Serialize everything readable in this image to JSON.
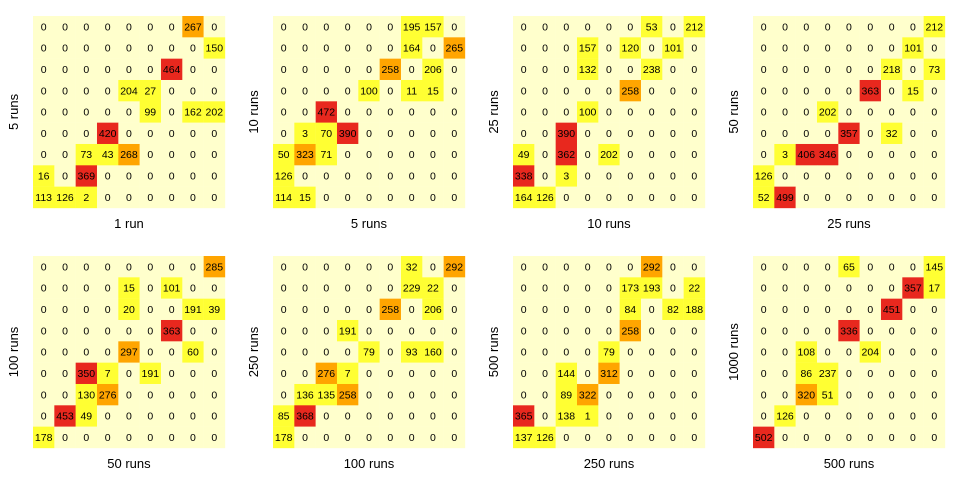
{
  "colors": {
    "empty": "#ffffcc",
    "low": "#ffff33",
    "mid": "#ffa500",
    "high": "#e8281e",
    "text": "#000000"
  },
  "chart_data": [
    {
      "type": "heatmap",
      "xlabel": "1 run",
      "ylabel": "5 runs",
      "rows": [
        [
          0,
          0,
          0,
          0,
          0,
          0,
          0,
          267,
          0
        ],
        [
          0,
          0,
          0,
          0,
          0,
          0,
          0,
          0,
          150
        ],
        [
          0,
          0,
          0,
          0,
          0,
          0,
          464,
          0,
          0
        ],
        [
          0,
          0,
          0,
          0,
          204,
          27,
          0,
          0,
          0
        ],
        [
          0,
          0,
          0,
          0,
          0,
          99,
          0,
          162,
          202
        ],
        [
          0,
          0,
          0,
          420,
          0,
          0,
          0,
          0,
          0
        ],
        [
          0,
          0,
          73,
          43,
          268,
          0,
          0,
          0,
          0
        ],
        [
          16,
          0,
          369,
          0,
          0,
          0,
          0,
          0,
          0
        ],
        [
          113,
          126,
          2,
          0,
          0,
          0,
          0,
          0,
          0
        ]
      ]
    },
    {
      "type": "heatmap",
      "xlabel": "5 runs",
      "ylabel": "10 runs",
      "rows": [
        [
          0,
          0,
          0,
          0,
          0,
          0,
          195,
          157,
          0
        ],
        [
          0,
          0,
          0,
          0,
          0,
          0,
          164,
          0,
          265
        ],
        [
          0,
          0,
          0,
          0,
          0,
          258,
          0,
          206,
          0
        ],
        [
          0,
          0,
          0,
          0,
          100,
          0,
          11,
          15,
          0
        ],
        [
          0,
          0,
          472,
          0,
          0,
          0,
          0,
          0,
          0
        ],
        [
          0,
          3,
          70,
          390,
          0,
          0,
          0,
          0,
          0
        ],
        [
          50,
          323,
          71,
          0,
          0,
          0,
          0,
          0,
          0
        ],
        [
          126,
          0,
          0,
          0,
          0,
          0,
          0,
          0,
          0
        ],
        [
          114,
          15,
          0,
          0,
          0,
          0,
          0,
          0,
          0
        ]
      ]
    },
    {
      "type": "heatmap",
      "xlabel": "10 runs",
      "ylabel": "25 runs",
      "rows": [
        [
          0,
          0,
          0,
          0,
          0,
          0,
          53,
          0,
          212
        ],
        [
          0,
          0,
          0,
          157,
          0,
          120,
          0,
          101,
          0
        ],
        [
          0,
          0,
          0,
          132,
          0,
          0,
          238,
          0,
          0
        ],
        [
          0,
          0,
          0,
          0,
          0,
          258,
          0,
          0,
          0
        ],
        [
          0,
          0,
          0,
          100,
          0,
          0,
          0,
          0,
          0
        ],
        [
          0,
          0,
          390,
          0,
          0,
          0,
          0,
          0,
          0
        ],
        [
          49,
          0,
          362,
          0,
          202,
          0,
          0,
          0,
          0
        ],
        [
          338,
          0,
          3,
          0,
          0,
          0,
          0,
          0,
          0
        ],
        [
          164,
          126,
          0,
          0,
          0,
          0,
          0,
          0,
          0
        ]
      ]
    },
    {
      "type": "heatmap",
      "xlabel": "25 runs",
      "ylabel": "50 runs",
      "rows": [
        [
          0,
          0,
          0,
          0,
          0,
          0,
          0,
          0,
          212
        ],
        [
          0,
          0,
          0,
          0,
          0,
          0,
          0,
          101,
          0
        ],
        [
          0,
          0,
          0,
          0,
          0,
          0,
          218,
          0,
          73
        ],
        [
          0,
          0,
          0,
          0,
          0,
          363,
          0,
          15,
          0
        ],
        [
          0,
          0,
          0,
          202,
          0,
          0,
          0,
          0,
          0
        ],
        [
          0,
          0,
          0,
          0,
          357,
          0,
          32,
          0,
          0
        ],
        [
          0,
          3,
          406,
          346,
          0,
          0,
          0,
          0,
          0
        ],
        [
          126,
          0,
          0,
          0,
          0,
          0,
          0,
          0,
          0
        ],
        [
          52,
          499,
          0,
          0,
          0,
          0,
          0,
          0,
          0
        ]
      ]
    },
    {
      "type": "heatmap",
      "xlabel": "50 runs",
      "ylabel": "100 runs",
      "rows": [
        [
          0,
          0,
          0,
          0,
          0,
          0,
          0,
          0,
          285
        ],
        [
          0,
          0,
          0,
          0,
          15,
          0,
          101,
          0,
          0
        ],
        [
          0,
          0,
          0,
          0,
          20,
          0,
          0,
          191,
          39
        ],
        [
          0,
          0,
          0,
          0,
          0,
          0,
          363,
          0,
          0
        ],
        [
          0,
          0,
          0,
          0,
          297,
          0,
          0,
          60,
          0
        ],
        [
          0,
          0,
          350,
          7,
          0,
          191,
          0,
          0,
          0
        ],
        [
          0,
          0,
          130,
          276,
          0,
          0,
          0,
          0,
          0
        ],
        [
          0,
          453,
          49,
          0,
          0,
          0,
          0,
          0,
          0
        ],
        [
          178,
          0,
          0,
          0,
          0,
          0,
          0,
          0,
          0
        ]
      ]
    },
    {
      "type": "heatmap",
      "xlabel": "100 runs",
      "ylabel": "250 runs",
      "rows": [
        [
          0,
          0,
          0,
          0,
          0,
          0,
          32,
          0,
          292
        ],
        [
          0,
          0,
          0,
          0,
          0,
          0,
          229,
          22,
          0
        ],
        [
          0,
          0,
          0,
          0,
          0,
          258,
          0,
          206,
          0
        ],
        [
          0,
          0,
          0,
          191,
          0,
          0,
          0,
          0,
          0
        ],
        [
          0,
          0,
          0,
          0,
          79,
          0,
          93,
          160,
          0
        ],
        [
          0,
          0,
          276,
          7,
          0,
          0,
          0,
          0,
          0
        ],
        [
          0,
          136,
          135,
          258,
          0,
          0,
          0,
          0,
          0
        ],
        [
          85,
          368,
          0,
          0,
          0,
          0,
          0,
          0,
          0
        ],
        [
          178,
          0,
          0,
          0,
          0,
          0,
          0,
          0,
          0
        ]
      ]
    },
    {
      "type": "heatmap",
      "xlabel": "250 runs",
      "ylabel": "500 runs",
      "rows": [
        [
          0,
          0,
          0,
          0,
          0,
          0,
          292,
          0,
          0
        ],
        [
          0,
          0,
          0,
          0,
          0,
          173,
          193,
          0,
          22
        ],
        [
          0,
          0,
          0,
          0,
          0,
          84,
          0,
          82,
          188
        ],
        [
          0,
          0,
          0,
          0,
          0,
          258,
          0,
          0,
          0
        ],
        [
          0,
          0,
          0,
          0,
          79,
          0,
          0,
          0,
          0
        ],
        [
          0,
          0,
          144,
          0,
          312,
          0,
          0,
          0,
          0
        ],
        [
          0,
          0,
          89,
          322,
          0,
          0,
          0,
          0,
          0
        ],
        [
          365,
          0,
          138,
          1,
          0,
          0,
          0,
          0,
          0
        ],
        [
          137,
          126,
          0,
          0,
          0,
          0,
          0,
          0,
          0
        ]
      ]
    },
    {
      "type": "heatmap",
      "xlabel": "500 runs",
      "ylabel": "1000 runs",
      "rows": [
        [
          0,
          0,
          0,
          0,
          65,
          0,
          0,
          0,
          145
        ],
        [
          0,
          0,
          0,
          0,
          0,
          0,
          0,
          357,
          17
        ],
        [
          0,
          0,
          0,
          0,
          0,
          0,
          451,
          0,
          0
        ],
        [
          0,
          0,
          0,
          0,
          336,
          0,
          0,
          0,
          0
        ],
        [
          0,
          0,
          108,
          0,
          0,
          204,
          0,
          0,
          0
        ],
        [
          0,
          0,
          86,
          237,
          0,
          0,
          0,
          0,
          0
        ],
        [
          0,
          0,
          320,
          51,
          0,
          0,
          0,
          0,
          0
        ],
        [
          0,
          126,
          0,
          0,
          0,
          0,
          0,
          0,
          0
        ],
        [
          502,
          0,
          0,
          0,
          0,
          0,
          0,
          0,
          0
        ]
      ]
    }
  ]
}
